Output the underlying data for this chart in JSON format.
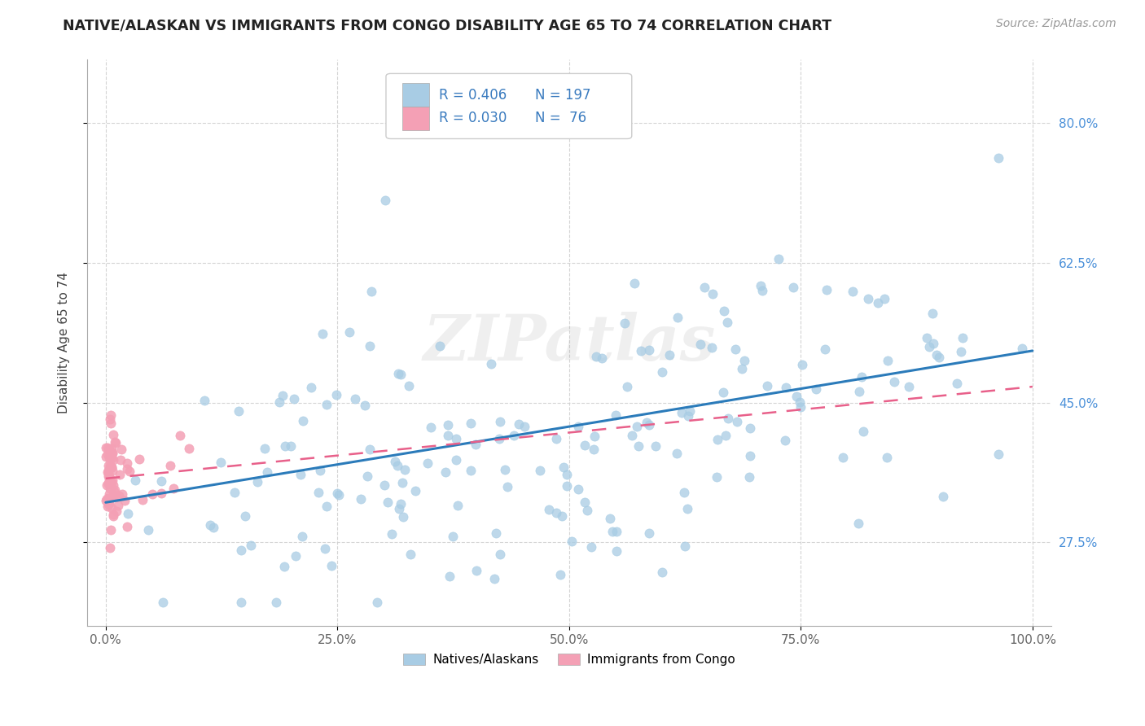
{
  "title": "NATIVE/ALASKAN VS IMMIGRANTS FROM CONGO DISABILITY AGE 65 TO 74 CORRELATION CHART",
  "source_text": "Source: ZipAtlas.com",
  "ylabel": "Disability Age 65 to 74",
  "watermark": "ZIPatlas",
  "legend_label1": "Natives/Alaskans",
  "legend_label2": "Immigrants from Congo",
  "xlim": [
    -0.02,
    1.02
  ],
  "ylim": [
    0.17,
    0.88
  ],
  "xticks": [
    0.0,
    0.25,
    0.5,
    0.75,
    1.0
  ],
  "xticklabels": [
    "0.0%",
    "25.0%",
    "50.0%",
    "75.0%",
    "100.0%"
  ],
  "yticks": [
    0.275,
    0.45,
    0.625,
    0.8
  ],
  "yticklabels": [
    "27.5%",
    "45.0%",
    "62.5%",
    "80.0%"
  ],
  "blue_color": "#a8cce4",
  "pink_color": "#f4a0b5",
  "blue_fill": "#a8cce4",
  "pink_fill": "#f4a0b5",
  "blue_line_color": "#2b7bba",
  "pink_line_color": "#e8608a",
  "grid_color": "#d0d0d0",
  "background_color": "#ffffff",
  "blue_r": 0.406,
  "blue_n": 197,
  "pink_r": 0.03,
  "pink_n": 76,
  "blue_line_x0": 0.0,
  "blue_line_y0": 0.325,
  "blue_line_x1": 1.0,
  "blue_line_y1": 0.515,
  "pink_line_x0": 0.0,
  "pink_line_y0": 0.355,
  "pink_line_x1": 1.0,
  "pink_line_y1": 0.47
}
